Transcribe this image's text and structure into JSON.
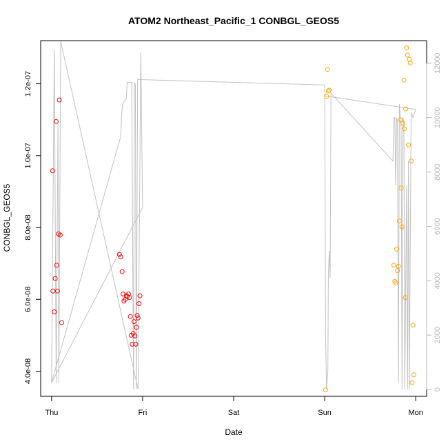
{
  "chart_data": {
    "type": "scatter",
    "title": "ATOM2 Northeast_Pacific_1 CONBGL_GEOS5",
    "xlabel": "Date",
    "ylabel": "CONBGL_GEOS5",
    "x_ticks": [
      {
        "value": 0,
        "label": "Thu"
      },
      {
        "value": 1,
        "label": "Fri"
      },
      {
        "value": 2,
        "label": "Sat"
      },
      {
        "value": 3,
        "label": "Sun"
      },
      {
        "value": 4,
        "label": "Mon"
      }
    ],
    "xlim": [
      -0.12,
      4.12
    ],
    "ylim": [
      3.3e-08,
      1.32e-07
    ],
    "y_ticks": [
      {
        "value": 4e-08,
        "label": "4.0e-08"
      },
      {
        "value": 6e-08,
        "label": "6.0e-08"
      },
      {
        "value": 8e-08,
        "label": "8.0e-08"
      },
      {
        "value": 1e-07,
        "label": "1.0e-07"
      },
      {
        "value": 1.2e-07,
        "label": "1.2e-07"
      }
    ],
    "y2lim": [
      -250,
      12830
    ],
    "y2_ticks": [
      {
        "value": 0,
        "label": "0"
      },
      {
        "value": 2000,
        "label": "2000"
      },
      {
        "value": 4000,
        "label": "4000"
      },
      {
        "value": 6000,
        "label": "6000"
      },
      {
        "value": 8000,
        "label": "8000"
      },
      {
        "value": 10000,
        "label": "10000"
      },
      {
        "value": 12000,
        "label": "12000"
      }
    ],
    "colors": {
      "series1": "#ff0000",
      "series2": "#ffa500",
      "altitude": "#c0c0c0",
      "axis": "#000000",
      "right_axis": "#b8b8b8"
    },
    "series": [
      {
        "color": "#ff0000",
        "points": [
          [
            0.01,
            9.58e-08
          ],
          [
            0.015,
            6.23e-08
          ],
          [
            0.03,
            5.65e-08
          ],
          [
            0.04,
            6.58e-08
          ],
          [
            0.05,
            1.095e-07
          ],
          [
            0.055,
            6.95e-08
          ],
          [
            0.065,
            6.23e-08
          ],
          [
            0.075,
            7.82e-08
          ],
          [
            0.085,
            1.155e-07
          ],
          [
            0.095,
            7.79e-08
          ],
          [
            0.11,
            5.35e-08
          ],
          [
            0.745,
            7.25e-08
          ],
          [
            0.76,
            7.18e-08
          ],
          [
            0.775,
            6.77e-08
          ],
          [
            0.785,
            6.15e-08
          ],
          [
            0.795,
            5.95e-08
          ],
          [
            0.81,
            6e-08
          ],
          [
            0.82,
            6.1e-08
          ],
          [
            0.83,
            6.08e-08
          ],
          [
            0.845,
            6.15e-08
          ],
          [
            0.855,
            6.05e-08
          ],
          [
            0.865,
            5.52e-08
          ],
          [
            0.875,
            5e-08
          ],
          [
            0.885,
            4.75e-08
          ],
          [
            0.895,
            5.05e-08
          ],
          [
            0.905,
            5.38e-08
          ],
          [
            0.915,
            4.98e-08
          ],
          [
            0.925,
            4.75e-08
          ],
          [
            0.932,
            5.22e-08
          ],
          [
            0.94,
            5.55e-08
          ],
          [
            0.95,
            5.48e-08
          ],
          [
            0.96,
            5.88e-08
          ],
          [
            0.97,
            6.1e-08
          ]
        ]
      },
      {
        "color": "#ffa500",
        "points": [
          [
            3.01,
            3.48e-08
          ],
          [
            3.02,
            1.165e-07
          ],
          [
            3.03,
            1.24e-07
          ],
          [
            3.04,
            1.18e-07
          ],
          [
            3.05,
            1.182e-07
          ],
          [
            3.76,
            6.95e-08
          ],
          [
            3.77,
            6.5e-08
          ],
          [
            3.78,
            6.45e-08
          ],
          [
            3.79,
            7.4e-08
          ],
          [
            3.8,
            6.8e-08
          ],
          [
            3.81,
            6.92e-08
          ],
          [
            3.82,
            8.18e-08
          ],
          [
            3.83,
            1.1e-07
          ],
          [
            3.84,
            9.1e-08
          ],
          [
            3.85,
            8.02e-08
          ],
          [
            3.86,
            1.09e-07
          ],
          [
            3.87,
            1.21e-07
          ],
          [
            3.875,
            1.075e-07
          ],
          [
            3.885,
            6.05e-08
          ],
          [
            3.89,
            1.13e-07
          ],
          [
            3.9,
            1.3e-07
          ],
          [
            3.91,
            1.28e-07
          ],
          [
            3.92,
            1.03e-07
          ],
          [
            3.93,
            1.268e-07
          ],
          [
            3.94,
            1.258e-07
          ],
          [
            3.95,
            9.85e-08
          ],
          [
            3.96,
            3.68e-08
          ],
          [
            3.97,
            5.28e-08
          ],
          [
            3.98,
            3.9e-08
          ]
        ]
      },
      {
        "type": "line",
        "axis": "right",
        "color": "#c0c0c0",
        "points": [
          [
            0.0,
            250
          ],
          [
            0.03,
            12500
          ],
          [
            0.05,
            250
          ],
          [
            0.07,
            9800
          ],
          [
            0.08,
            250
          ],
          [
            0.1,
            12800
          ],
          [
            0.95,
            10
          ],
          [
            0.98,
            12400
          ],
          [
            1.0,
            6700
          ],
          [
            1.0,
            6700
          ],
          [
            0.0,
            250
          ],
          [
            0.75,
            9200
          ],
          [
            0.76,
            9300
          ],
          [
            0.77,
            10100
          ],
          [
            0.78,
            10500
          ],
          [
            0.8,
            10600
          ],
          [
            0.82,
            10700
          ],
          [
            0.83,
            11300
          ],
          [
            0.84,
            11300
          ],
          [
            0.86,
            11300
          ],
          [
            0.88,
            11300
          ],
          [
            0.9,
            10
          ],
          [
            0.91,
            11300
          ],
          [
            0.92,
            11200
          ],
          [
            0.93,
            10
          ],
          [
            0.945,
            11400
          ],
          [
            3.0,
            11200
          ],
          [
            3.01,
            2000
          ],
          [
            3.02,
            10
          ],
          [
            3.035,
            700
          ],
          [
            3.04,
            4200
          ],
          [
            3.05,
            5100
          ],
          [
            3.06,
            4100
          ],
          [
            3.07,
            10900
          ],
          [
            3.75,
            8400
          ],
          [
            3.76,
            10000
          ],
          [
            3.77,
            10000
          ],
          [
            3.78,
            7500
          ],
          [
            3.79,
            10000
          ],
          [
            3.8,
            9800
          ],
          [
            3.81,
            250
          ],
          [
            3.82,
            10500
          ],
          [
            3.84,
            9600
          ],
          [
            3.85,
            10
          ],
          [
            3.86,
            10000
          ],
          [
            3.87,
            9800
          ],
          [
            3.88,
            10
          ],
          [
            3.9,
            7500
          ],
          [
            3.91,
            10
          ],
          [
            3.92,
            8400
          ],
          [
            3.93,
            10
          ],
          [
            3.95,
            10200
          ],
          [
            3.97,
            10000
          ],
          [
            4.0,
            10300
          ],
          [
            3.0,
            10800
          ]
        ]
      }
    ]
  }
}
